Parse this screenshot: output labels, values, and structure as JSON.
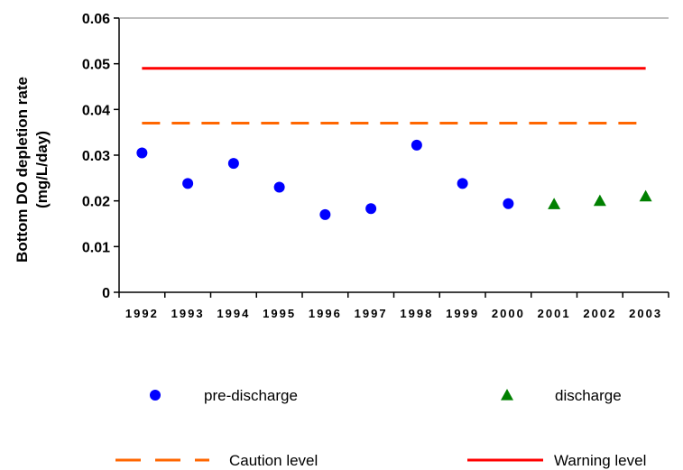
{
  "chart_data": {
    "type": "scatter",
    "title": "",
    "xlabel": "",
    "ylabel_lines": [
      "Bottom DO depletion rate",
      "(mg/L/day)"
    ],
    "categories": [
      "1992",
      "1993",
      "1994",
      "1995",
      "1996",
      "1997",
      "1998",
      "1999",
      "2000",
      "2001",
      "2002",
      "2003"
    ],
    "ylim": [
      0,
      0.06
    ],
    "yticks": [
      0,
      0.01,
      0.02,
      0.03,
      0.04,
      0.05,
      0.06
    ],
    "ytick_labels": [
      "0",
      "0.01",
      "0.02",
      "0.03",
      "0.04",
      "0.05",
      "0.06"
    ],
    "grid": false,
    "series": [
      {
        "name": "pre-discharge",
        "marker": "circle",
        "color": "#0000ff",
        "points": [
          {
            "x": "1992",
            "y": 0.0305
          },
          {
            "x": "1993",
            "y": 0.0238
          },
          {
            "x": "1994",
            "y": 0.0282
          },
          {
            "x": "1995",
            "y": 0.023
          },
          {
            "x": "1996",
            "y": 0.017
          },
          {
            "x": "1997",
            "y": 0.0183
          },
          {
            "x": "1998",
            "y": 0.0322
          },
          {
            "x": "1999",
            "y": 0.0238
          },
          {
            "x": "2000",
            "y": 0.0194
          }
        ]
      },
      {
        "name": "discharge",
        "marker": "triangle",
        "color": "#008000",
        "points": [
          {
            "x": "2001",
            "y": 0.0193
          },
          {
            "x": "2002",
            "y": 0.02
          },
          {
            "x": "2003",
            "y": 0.021
          }
        ]
      }
    ],
    "reference_lines": [
      {
        "name": "Caution level",
        "y": 0.037,
        "color": "#ff6600",
        "style": "dashed"
      },
      {
        "name": "Warning level",
        "y": 0.049,
        "color": "#ff0000",
        "style": "solid"
      }
    ],
    "legend_position": "bottom"
  }
}
